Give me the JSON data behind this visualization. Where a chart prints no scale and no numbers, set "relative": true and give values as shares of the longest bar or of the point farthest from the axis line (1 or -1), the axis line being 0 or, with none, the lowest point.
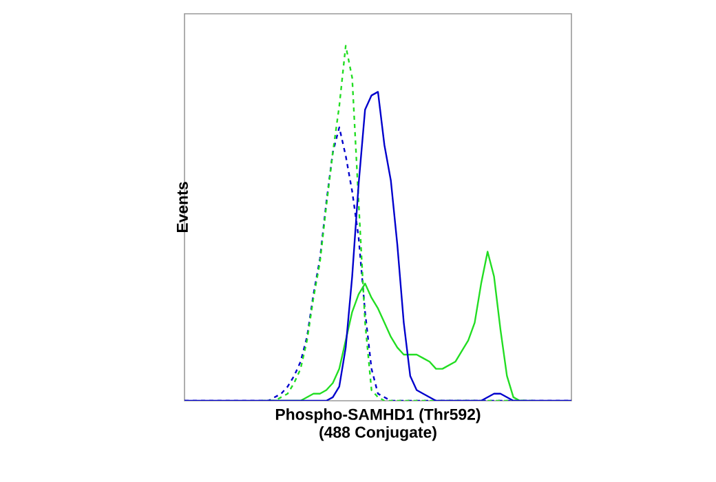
{
  "chart_data": {
    "type": "line",
    "relative": true,
    "xlabel": "Phospho-SAMHD1 (Thr592) (488 Conjugate)",
    "ylabel": "Events",
    "marker": "none",
    "categories": [
      null,
      null,
      null,
      null,
      null,
      null,
      null,
      null,
      null,
      null,
      null,
      null,
      null,
      null,
      null,
      null,
      null,
      null,
      null,
      null,
      null,
      null,
      null,
      null,
      null,
      null,
      null,
      null,
      null,
      null,
      null,
      null,
      null,
      null,
      null,
      null,
      null,
      null,
      null,
      null,
      null,
      null,
      null,
      null,
      null,
      null,
      null,
      null,
      null,
      null,
      null,
      null,
      null,
      null,
      null,
      null,
      null,
      null,
      null,
      null,
      null
    ],
    "series": [
      {
        "color": "#0000cc",
        "line_style": "dashed",
        "values": [
          0,
          0,
          0,
          0,
          0,
          0,
          0,
          0,
          0,
          0,
          0,
          0,
          0,
          0,
          0.01,
          0.02,
          0.04,
          0.07,
          0.11,
          0.18,
          0.3,
          0.4,
          0.56,
          0.7,
          0.77,
          0.69,
          0.59,
          0.46,
          0.25,
          0.09,
          0.02,
          0.01,
          0,
          0,
          0,
          0,
          0,
          0,
          0,
          0,
          0,
          0,
          0,
          0,
          0,
          0,
          0,
          0,
          0,
          0,
          0,
          0,
          0,
          0,
          0,
          0,
          0,
          0,
          0,
          0,
          0
        ]
      },
      {
        "color": "#22dd22",
        "line_style": "dashed",
        "values": [
          null,
          null,
          null,
          null,
          null,
          null,
          null,
          null,
          null,
          null,
          null,
          null,
          0,
          0,
          0,
          0.01,
          0.02,
          0.05,
          0.09,
          0.17,
          0.29,
          0.39,
          0.55,
          0.7,
          0.83,
          1.0,
          0.91,
          0.56,
          0.22,
          0.03,
          0.01,
          0,
          0,
          0,
          0,
          0,
          0,
          0,
          0,
          0,
          0,
          0,
          0,
          0,
          0,
          0,
          0,
          0,
          0,
          0,
          0,
          0,
          0,
          0,
          0,
          null,
          null,
          null,
          null,
          null,
          null
        ]
      },
      {
        "color": "#22dd22",
        "line_style": "solid",
        "values": [
          null,
          null,
          null,
          null,
          null,
          null,
          null,
          null,
          null,
          null,
          null,
          null,
          null,
          0,
          0,
          0,
          0,
          0,
          0,
          0.01,
          0.02,
          0.02,
          0.03,
          0.05,
          0.09,
          0.17,
          0.25,
          0.3,
          0.33,
          0.29,
          0.26,
          0.22,
          0.18,
          0.15,
          0.13,
          0.13,
          0.13,
          0.12,
          0.11,
          0.09,
          0.09,
          0.1,
          0.11,
          0.14,
          0.17,
          0.22,
          0.33,
          0.42,
          0.35,
          0.2,
          0.07,
          0.01,
          0,
          0,
          null,
          null,
          null,
          null,
          null,
          null,
          null
        ]
      },
      {
        "color": "#0000cc",
        "line_style": "solid",
        "values": [
          0,
          0,
          0,
          0,
          0,
          0,
          0,
          0,
          0,
          0,
          0,
          0,
          0,
          0,
          0,
          0,
          0,
          0,
          0,
          0,
          0,
          0,
          0,
          0.01,
          0.04,
          0.15,
          0.35,
          0.61,
          0.82,
          0.86,
          0.87,
          0.72,
          0.62,
          0.44,
          0.22,
          0.07,
          0.03,
          0.02,
          0.01,
          0,
          0,
          0,
          0,
          0,
          0,
          0,
          0,
          0.01,
          0.02,
          0.02,
          0.01,
          0,
          0,
          0,
          0,
          0,
          0,
          0,
          0,
          0,
          0
        ]
      }
    ]
  }
}
